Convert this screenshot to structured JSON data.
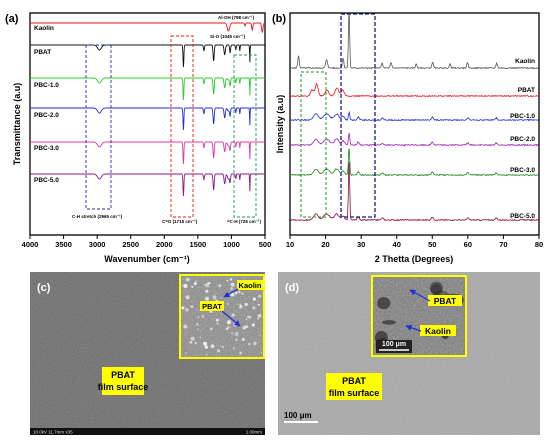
{
  "colors": {
    "kaolin": "#e8141a",
    "pbat": "#111111",
    "pbc1": "#28cc2a",
    "pbc2": "#1f2fd8",
    "pbc3": "#e0399e",
    "pbc5": "#8a1a8a",
    "xrd_kaolin": "#555555",
    "xrd_pbat": "#e8141a",
    "xrd_pbc1": "#1f2fd8",
    "xrd_pbc2": "#a020c0",
    "xrd_pbc3": "#1c8a1c",
    "xrd_pbc5": "#8a1040",
    "sem_bg": "#6a6a6a",
    "label_yellow": "#ffff00",
    "arrow_blue": "#1f2fd8"
  },
  "panels": {
    "a": "(a)",
    "b": "(b)",
    "c": "(c)",
    "d": "(d)"
  },
  "chart_data": [
    {
      "type": "line",
      "panel": "(a)",
      "xlabel": "Wavenumber (cm⁻¹)",
      "ylabel": "Transmittance (a.u)",
      "xlim": [
        4000,
        500
      ],
      "xticks": [
        "4000",
        "3500",
        "3000",
        "2500",
        "2000",
        "1500",
        "1000",
        "500"
      ],
      "series": [
        {
          "name": "Kaolin",
          "color": "#e8141a"
        },
        {
          "name": "PBAT",
          "color": "#111111"
        },
        {
          "name": "PBC-1.0",
          "color": "#28cc2a"
        },
        {
          "name": "PBC-2.0",
          "color": "#1f2fd8"
        },
        {
          "name": "PBC-3.0",
          "color": "#e0399e"
        },
        {
          "name": "PBC-5.0",
          "color": "#8a1a8a"
        }
      ],
      "annotations": [
        "Al-OH (798 cm⁻¹)",
        "Si-O (1045 cm⁻¹)",
        "C-H stretch (2965 cm⁻¹)",
        "C=O (1715 cm⁻¹)",
        "=C-H (726 cm⁻¹)"
      ]
    },
    {
      "type": "line",
      "panel": "(b)",
      "xlabel": "2 Thetta (Degrees)",
      "ylabel": "Intensity (a.u)",
      "xlim": [
        10,
        80
      ],
      "xticks": [
        "10",
        "20",
        "30",
        "40",
        "50",
        "60",
        "70",
        "80"
      ],
      "series": [
        {
          "name": "Kaolin",
          "color": "#555555"
        },
        {
          "name": "PBAT",
          "color": "#e8141a"
        },
        {
          "name": "PBC-1.0",
          "color": "#1f2fd8"
        },
        {
          "name": "PBC-2.0",
          "color": "#a020c0"
        },
        {
          "name": "PBC-3.0",
          "color": "#1c8a1c"
        },
        {
          "name": "PBC-5.0",
          "color": "#8a1040"
        }
      ]
    }
  ],
  "sem_c": {
    "main_label_1": "PBAT",
    "main_label_2": "film surface",
    "inset_label_kaolin": "Kaolin",
    "inset_label_pbat": "PBAT",
    "footer_left": "10.0kV 11.7mm x35",
    "footer_right": "1.00mm"
  },
  "sem_d": {
    "main_label_1": "PBAT",
    "main_label_2": "film surface",
    "inset_label_pbat": "PBAT",
    "inset_label_kaolin": "Kaolin",
    "inset_scale": "100 μm",
    "main_scale": "100 μm"
  }
}
